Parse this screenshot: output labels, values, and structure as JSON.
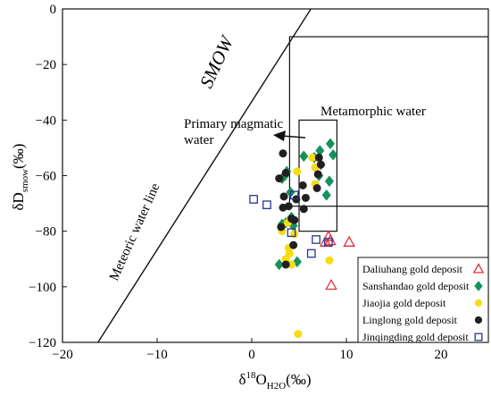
{
  "chart_data": {
    "type": "scatter",
    "title": "",
    "xlabel": {
      "main": "δ",
      "sup": "18",
      "mid": "O",
      "sub": "H2O",
      "tail": "(‰)"
    },
    "ylabel": {
      "main": "δD",
      "sub": "smow",
      "tail": "(‰)"
    },
    "xlim": [
      -20,
      25
    ],
    "ylim": [
      -120,
      0
    ],
    "xticks": [
      -20,
      -10,
      0,
      10,
      20
    ],
    "xtick_labels": [
      "−20",
      "−10",
      "0",
      "10",
      "20"
    ],
    "yticks": [
      0,
      -20,
      -40,
      -60,
      -80,
      -100,
      -120
    ],
    "ytick_labels": [
      "0",
      "−20",
      "−40",
      "−60",
      "−80",
      "−100",
      "−120"
    ],
    "grid": false,
    "legend_placement": "bottom-right",
    "annotations": {
      "smow": "SMOW",
      "meteoric": "Meteoric water line",
      "metamorphic": "Metamorphic water",
      "primary_line1": "Primary magmatic",
      "primary_line2": "water"
    },
    "meteoric_line": {
      "x": [
        -16.25,
        6.25
      ],
      "y": [
        -120,
        0
      ]
    },
    "metamorphic_box": {
      "x": [
        4,
        25
      ],
      "y": [
        -71,
        -10
      ]
    },
    "magmatic_box": {
      "x": [
        5,
        9
      ],
      "y": [
        -80,
        -40
      ]
    },
    "series": [
      {
        "name": "Daliuhang gold deposit",
        "marker": "triangle-open",
        "color": "#e0303a",
        "points": [
          [
            8.1,
            -82
          ],
          [
            8.3,
            -83.5
          ],
          [
            7.8,
            -84
          ],
          [
            10.3,
            -84
          ],
          [
            8.4,
            -99.5
          ]
        ]
      },
      {
        "name": "Sanshandao gold deposit",
        "marker": "diamond",
        "color": "#13935a",
        "points": [
          [
            3.7,
            -58.5
          ],
          [
            3.5,
            -60
          ],
          [
            3.2,
            -61
          ],
          [
            8.3,
            -48.5
          ],
          [
            8.6,
            -52.5
          ],
          [
            7.2,
            -51
          ],
          [
            5.5,
            -53
          ],
          [
            6.6,
            -53.5
          ],
          [
            7.3,
            -56
          ],
          [
            4.1,
            -66
          ],
          [
            7.1,
            -60
          ],
          [
            8.2,
            -62
          ],
          [
            7.9,
            -67
          ],
          [
            4.2,
            -75
          ],
          [
            3.6,
            -77
          ],
          [
            4.4,
            -78
          ],
          [
            3.2,
            -77.5
          ],
          [
            2.9,
            -92
          ],
          [
            4.8,
            -91
          ]
        ]
      },
      {
        "name": "Jiaojia gold deposit",
        "marker": "circle",
        "color": "#f6dc12",
        "points": [
          [
            6.4,
            -53.5
          ],
          [
            6.7,
            -57
          ],
          [
            4.8,
            -58.5
          ],
          [
            6.7,
            -63
          ],
          [
            3.8,
            -77
          ],
          [
            3.2,
            -80
          ],
          [
            4.5,
            -81
          ],
          [
            3.9,
            -86
          ],
          [
            4.0,
            -88
          ],
          [
            3.6,
            -90
          ],
          [
            4.2,
            -92
          ],
          [
            8.2,
            -90.5
          ],
          [
            4.9,
            -117
          ]
        ]
      },
      {
        "name": "Linglong gold deposit",
        "marker": "circle",
        "color": "#231f20",
        "points": [
          [
            3.3,
            -52
          ],
          [
            7.1,
            -53.5
          ],
          [
            7.3,
            -56
          ],
          [
            3.6,
            -59
          ],
          [
            7.0,
            -59.5
          ],
          [
            2.9,
            -61
          ],
          [
            5.4,
            -63.5
          ],
          [
            6.9,
            -64.5
          ],
          [
            3.4,
            -67.5
          ],
          [
            4.7,
            -68.5
          ],
          [
            5.7,
            -68
          ],
          [
            3.9,
            -71
          ],
          [
            3.3,
            -71.5
          ],
          [
            5.5,
            -72
          ],
          [
            4.2,
            -75.5
          ],
          [
            4.5,
            -76
          ],
          [
            3.1,
            -78.5
          ],
          [
            4.4,
            -85
          ],
          [
            3.6,
            -92
          ]
        ]
      },
      {
        "name": "Jinqingding gold deposit",
        "marker": "square-open",
        "color": "#27358f",
        "points": [
          [
            0.2,
            -68.5
          ],
          [
            1.6,
            -70.5
          ],
          [
            4.5,
            -67
          ],
          [
            4.2,
            -80.5
          ],
          [
            6.8,
            -83
          ],
          [
            8.1,
            -84
          ],
          [
            6.3,
            -88
          ]
        ]
      }
    ]
  }
}
